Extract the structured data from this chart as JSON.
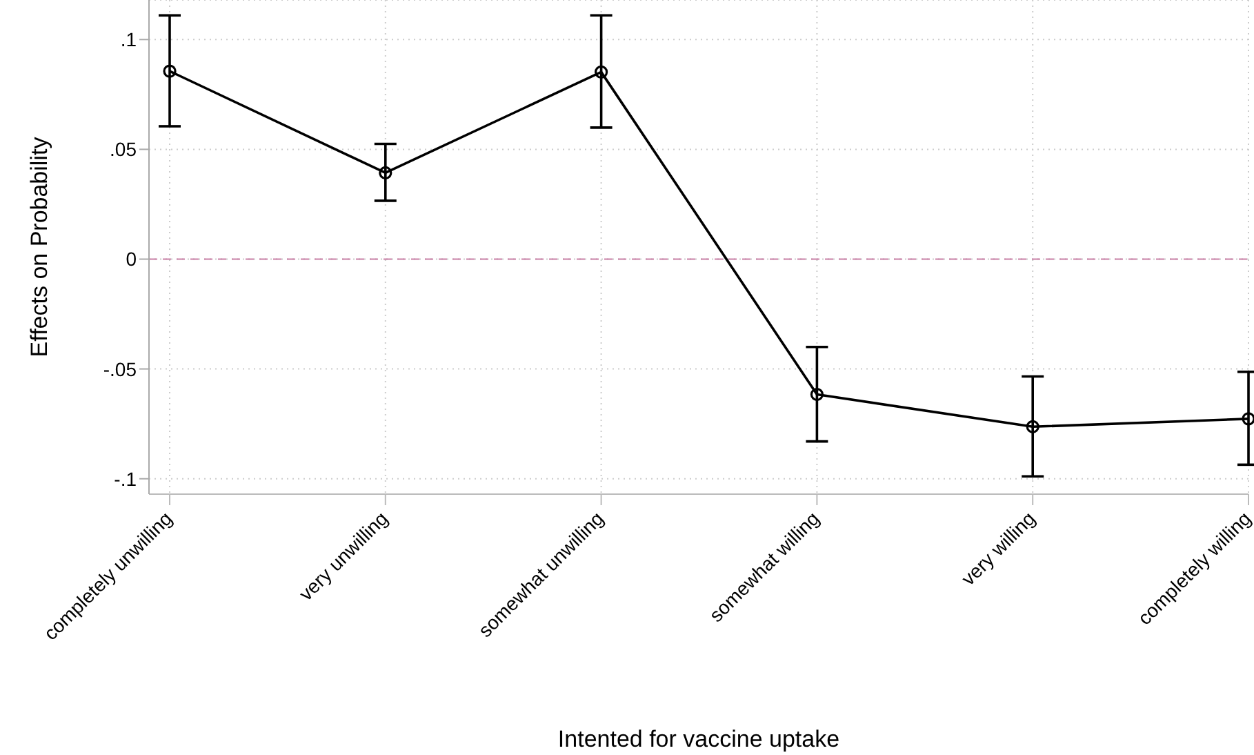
{
  "chart_data": {
    "type": "line",
    "xlabel": "Intented for vaccine uptake",
    "ylabel": "Effects on Probability",
    "categories": [
      "completely unwilling",
      "very unwilling",
      "somewhat unwilling",
      "somewhat willing",
      "very willing",
      "completely willing"
    ],
    "series": [
      {
        "color": "#000000",
        "values": [
          0.0856,
          0.0393,
          0.0852,
          -0.0616,
          -0.0763,
          -0.0727
        ],
        "errors": [
          [
            0.0605,
            0.111
          ],
          [
            0.0266,
            0.0525
          ],
          [
            0.0599,
            0.111
          ],
          [
            -0.083,
            -0.04
          ],
          [
            -0.0989,
            -0.0534
          ],
          [
            -0.0936,
            -0.0513
          ]
        ]
      }
    ],
    "ylim": [
      -0.107,
      0.118
    ],
    "yticks": [
      {
        "value": -0.1,
        "label": "-.1"
      },
      {
        "value": -0.05,
        "label": "-.05"
      },
      {
        "value": 0,
        "label": "0"
      },
      {
        "value": 0.05,
        "label": ".05"
      },
      {
        "value": 0.1,
        "label": ".1"
      }
    ],
    "ref_lines": [
      {
        "axis": "y",
        "value": 0,
        "color": "#c97fa6",
        "line_style": "dashed"
      }
    ],
    "grid": true,
    "marker": "circle",
    "line_style": "solid",
    "legend": false
  }
}
